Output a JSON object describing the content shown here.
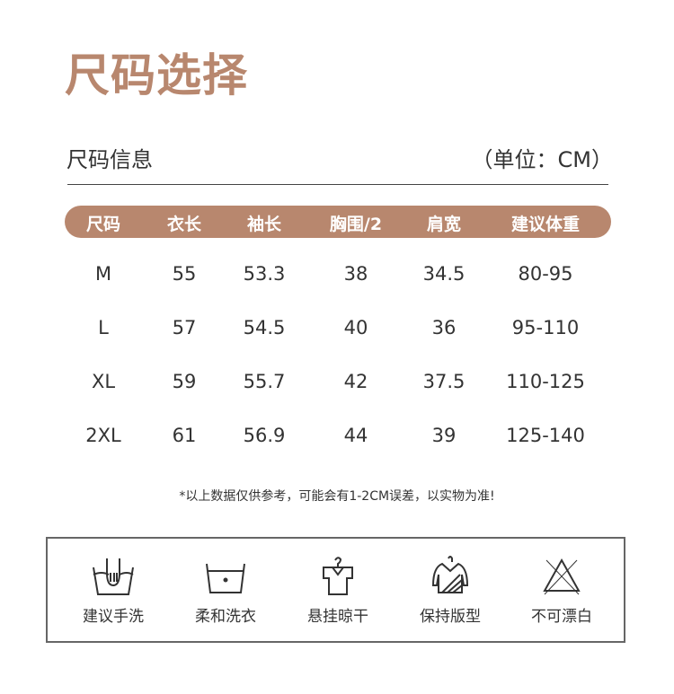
{
  "title": "尺码选择",
  "section_label": "尺码信息",
  "unit_label": "（单位：CM）",
  "brand_color": "#b8876e",
  "table": {
    "headers": [
      "尺码",
      "衣长",
      "袖长",
      "胸围/2",
      "肩宽",
      "建议体重"
    ],
    "rows": [
      [
        "M",
        "55",
        "53.3",
        "38",
        "34.5",
        "80-95"
      ],
      [
        "L",
        "57",
        "54.5",
        "40",
        "36",
        "95-110"
      ],
      [
        "XL",
        "59",
        "55.7",
        "42",
        "37.5",
        "110-125"
      ],
      [
        "2XL",
        "61",
        "56.9",
        "44",
        "39",
        "125-140"
      ]
    ]
  },
  "note": "*以上数据仅供参考，可能会有1-2CM误差，以实物为准!",
  "care": [
    {
      "icon": "hand-wash-icon",
      "label": "建议手洗"
    },
    {
      "icon": "gentle-wash-icon",
      "label": "柔和洗衣"
    },
    {
      "icon": "hang-dry-icon",
      "label": "悬挂晾干"
    },
    {
      "icon": "keep-shape-icon",
      "label": "保持版型"
    },
    {
      "icon": "no-bleach-icon",
      "label": "不可漂白"
    }
  ]
}
